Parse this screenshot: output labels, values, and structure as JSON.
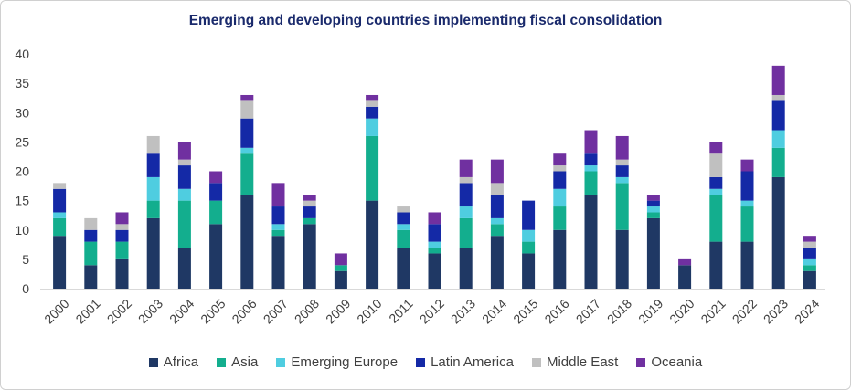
{
  "chart_data": {
    "type": "bar",
    "stacked": true,
    "title": "Emerging and developing countries implementing fiscal consolidation",
    "xlabel": "",
    "ylabel": "",
    "ylim": [
      0,
      40
    ],
    "yticks": [
      0,
      5,
      10,
      15,
      20,
      25,
      30,
      35,
      40
    ],
    "grid": false,
    "legend_position": "bottom",
    "categories": [
      "2000",
      "2001",
      "2002",
      "2003",
      "2004",
      "2005",
      "2006",
      "2007",
      "2008",
      "2009",
      "2010",
      "2011",
      "2012",
      "2013",
      "2014",
      "2015",
      "2016",
      "2017",
      "2018",
      "2019",
      "2020",
      "2021",
      "2022",
      "2023",
      "2024"
    ],
    "series": [
      {
        "name": "Africa",
        "color": "#1f3864",
        "values": [
          9,
          4,
          5,
          12,
          7,
          11,
          16,
          9,
          11,
          3,
          15,
          7,
          6,
          7,
          9,
          6,
          10,
          16,
          10,
          12,
          4,
          8,
          8,
          19,
          3
        ]
      },
      {
        "name": "Asia",
        "color": "#13ae8e",
        "values": [
          3,
          4,
          3,
          3,
          8,
          4,
          7,
          1,
          1,
          1,
          11,
          3,
          1,
          5,
          2,
          2,
          4,
          4,
          8,
          1,
          0,
          8,
          6,
          5,
          1
        ]
      },
      {
        "name": "Emerging Europe",
        "color": "#4fcde0",
        "values": [
          1,
          0,
          0,
          4,
          2,
          0,
          1,
          1,
          0,
          0,
          3,
          1,
          1,
          2,
          1,
          2,
          3,
          1,
          1,
          1,
          0,
          1,
          1,
          3,
          1
        ]
      },
      {
        "name": "Latin America",
        "color": "#1429a6",
        "values": [
          4,
          2,
          2,
          4,
          4,
          3,
          5,
          3,
          2,
          0,
          2,
          2,
          3,
          4,
          4,
          5,
          3,
          2,
          2,
          1,
          0,
          2,
          5,
          5,
          2
        ]
      },
      {
        "name": "Middle East",
        "color": "#c0c0c0",
        "values": [
          1,
          2,
          1,
          3,
          1,
          0,
          3,
          0,
          1,
          0,
          1,
          1,
          0,
          1,
          2,
          0,
          1,
          0,
          1,
          0,
          0,
          4,
          0,
          1,
          1
        ]
      },
      {
        "name": "Oceania",
        "color": "#7030a0",
        "values": [
          0,
          0,
          2,
          0,
          3,
          2,
          1,
          4,
          1,
          2,
          1,
          0,
          2,
          3,
          4,
          0,
          2,
          4,
          4,
          1,
          1,
          2,
          2,
          5,
          1
        ]
      }
    ]
  }
}
